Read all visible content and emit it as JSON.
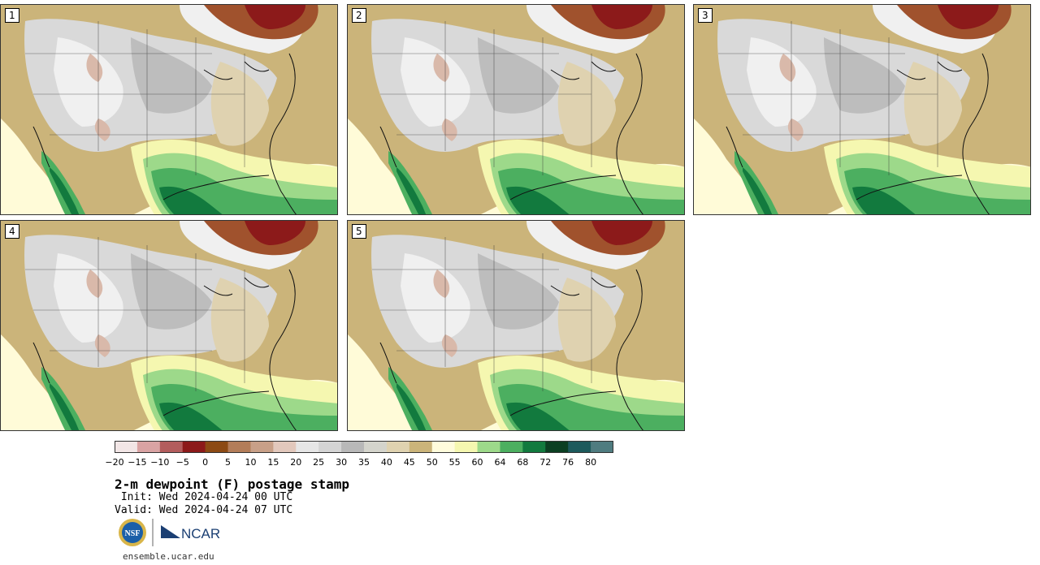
{
  "panels": [
    {
      "label": "1"
    },
    {
      "label": "2"
    },
    {
      "label": "3"
    },
    {
      "label": "4"
    },
    {
      "label": "5"
    }
  ],
  "colorbar": {
    "colors": [
      "#f2e6e6",
      "#d9a3a3",
      "#b35d5d",
      "#8c1a1a",
      "#8c4a14",
      "#b37d59",
      "#c8a088",
      "#e2c8bc",
      "#e6e6e6",
      "#d4d4d4",
      "#b8b8b8",
      "#d4d4cc",
      "#dfd2b0",
      "#cbb47a",
      "#fffcdc",
      "#f5f7b0",
      "#9dd98a",
      "#4caf60",
      "#127a3e",
      "#0b3f22",
      "#1d5a5c",
      "#4f7c80"
    ],
    "ticks": [
      "−20",
      "−15",
      "−10",
      "−5",
      "0",
      "5",
      "10",
      "15",
      "20",
      "25",
      "30",
      "35",
      "40",
      "45",
      "50",
      "55",
      "60",
      "64",
      "68",
      "72",
      "76",
      "80"
    ]
  },
  "title": "2-m dewpoint (F) postage stamp",
  "init": " Init: Wed 2024-04-24 00 UTC",
  "valid": "Valid: Wed 2024-04-24 07 UTC",
  "logos": {
    "nsf": "NSF",
    "ncar": "NCAR"
  },
  "site": "ensemble.ucar.edu"
}
